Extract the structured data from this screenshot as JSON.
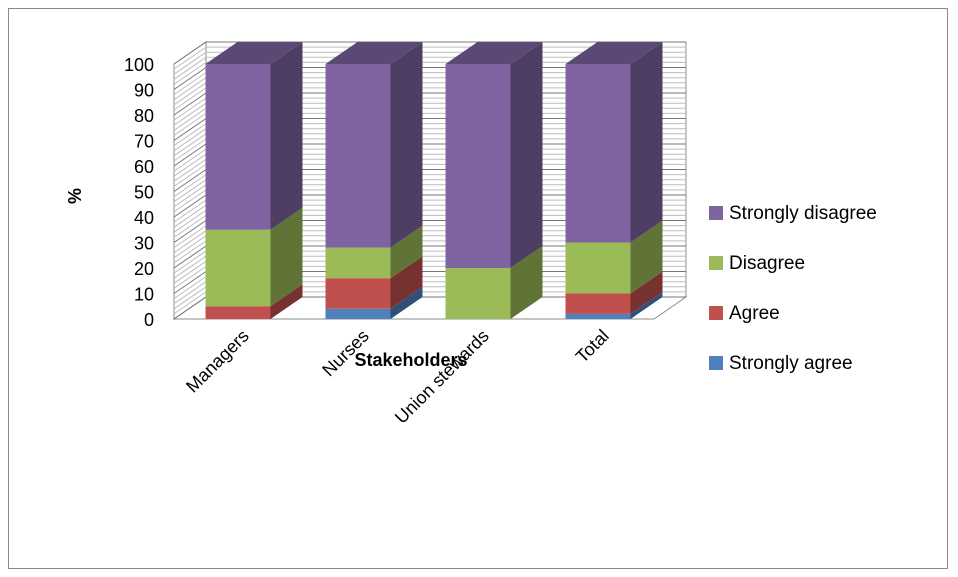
{
  "chart_data": {
    "type": "bar",
    "stacked": true,
    "three_d": true,
    "categories": [
      "Managers",
      "Nurses",
      "Union stewards",
      "Total"
    ],
    "series": [
      {
        "name": "Strongly agree",
        "color": "#4F81BD",
        "values": [
          0,
          4,
          0,
          2
        ]
      },
      {
        "name": "Agree",
        "color": "#C0504D",
        "values": [
          5,
          12,
          0,
          8
        ]
      },
      {
        "name": "Disagree",
        "color": "#9BBB59",
        "values": [
          30,
          12,
          20,
          20
        ]
      },
      {
        "name": "Strongly disagree",
        "color": "#8064A2",
        "values": [
          65,
          72,
          80,
          70
        ]
      }
    ],
    "xlabel": "Stakeholders",
    "ylabel": "%",
    "ylim": [
      0,
      100
    ],
    "yticks": [
      0,
      10,
      20,
      30,
      40,
      50,
      60,
      70,
      80,
      90,
      100
    ],
    "grid": true,
    "legend_position": "right"
  }
}
